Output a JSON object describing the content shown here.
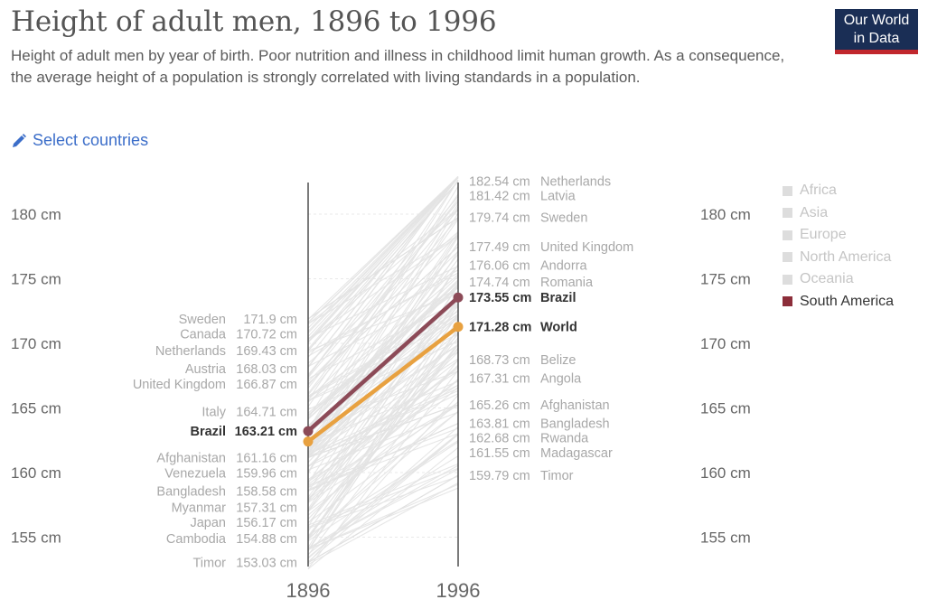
{
  "header": {
    "title": "Height of adult men, 1896 to 1996",
    "subtitle": "Height of adult men by year of birth. Poor nutrition and illness in childhood limit human growth. As a consequence, the average height of a population is strongly correlated with living standards in a population.",
    "logo_line1": "Our World",
    "logo_line2": "in Data",
    "select_countries": "Select countries",
    "select_icon": "pencil-icon"
  },
  "legend": {
    "items": [
      {
        "label": "Africa",
        "active": false
      },
      {
        "label": "Asia",
        "active": false
      },
      {
        "label": "Europe",
        "active": false
      },
      {
        "label": "North America",
        "active": false
      },
      {
        "label": "Oceania",
        "active": false
      },
      {
        "label": "South America",
        "active": true
      }
    ]
  },
  "colors": {
    "brazil": "#8c4a57",
    "world": "#e8a140",
    "background_lines": "#e2e2e2",
    "axis": "#333333",
    "south_america": "#8c2e3a",
    "logo_bg": "#1a2e55",
    "logo_bar": "#c1272d",
    "link": "#3c6ec9"
  },
  "chart_data": {
    "type": "line",
    "chart_style": "slope",
    "x": [
      1896,
      1996
    ],
    "xlabels": [
      "1896",
      "1996"
    ],
    "ylim": [
      152,
      183
    ],
    "yticks": [
      155,
      160,
      165,
      170,
      175,
      180
    ],
    "ytick_labels": [
      "155 cm",
      "160 cm",
      "165 cm",
      "170 cm",
      "175 cm",
      "180 cm"
    ],
    "unit": "cm",
    "highlighted": [
      {
        "name": "Brazil",
        "values": [
          163.21,
          173.55
        ],
        "color": "#8c4a57"
      },
      {
        "name": "World",
        "values": [
          162.4,
          171.28
        ],
        "color": "#e8a140"
      }
    ],
    "left_labels": [
      {
        "name": "Sweden",
        "value": 171.9,
        "text": "171.9 cm",
        "bold": false
      },
      {
        "name": "Canada",
        "value": 170.72,
        "text": "170.72 cm",
        "bold": false
      },
      {
        "name": "Netherlands",
        "value": 169.43,
        "text": "169.43 cm",
        "bold": false
      },
      {
        "name": "Austria",
        "value": 168.03,
        "text": "168.03 cm",
        "bold": false
      },
      {
        "name": "United Kingdom",
        "value": 166.87,
        "text": "166.87 cm",
        "bold": false
      },
      {
        "name": "Italy",
        "value": 164.71,
        "text": "164.71 cm",
        "bold": false
      },
      {
        "name": "Brazil",
        "value": 163.21,
        "text": "163.21 cm",
        "bold": true
      },
      {
        "name": "Afghanistan",
        "value": 161.16,
        "text": "161.16 cm",
        "bold": false
      },
      {
        "name": "Venezuela",
        "value": 159.96,
        "text": "159.96 cm",
        "bold": false
      },
      {
        "name": "Bangladesh",
        "value": 158.58,
        "text": "158.58 cm",
        "bold": false
      },
      {
        "name": "Myanmar",
        "value": 157.31,
        "text": "157.31 cm",
        "bold": false
      },
      {
        "name": "Japan",
        "value": 156.17,
        "text": "156.17 cm",
        "bold": false
      },
      {
        "name": "Cambodia",
        "value": 154.88,
        "text": "154.88 cm",
        "bold": false
      },
      {
        "name": "Timor",
        "value": 153.03,
        "text": "153.03 cm",
        "bold": false
      }
    ],
    "right_labels": [
      {
        "name": "Netherlands",
        "value": 182.54,
        "text": "182.54 cm",
        "bold": false
      },
      {
        "name": "Latvia",
        "value": 181.42,
        "text": "181.42 cm",
        "bold": false
      },
      {
        "name": "Sweden",
        "value": 179.74,
        "text": "179.74 cm",
        "bold": false
      },
      {
        "name": "United Kingdom",
        "value": 177.49,
        "text": "177.49 cm",
        "bold": false
      },
      {
        "name": "Andorra",
        "value": 176.06,
        "text": "176.06 cm",
        "bold": false
      },
      {
        "name": "Romania",
        "value": 174.74,
        "text": "174.74 cm",
        "bold": false
      },
      {
        "name": "Brazil",
        "value": 173.55,
        "text": "173.55 cm",
        "bold": true
      },
      {
        "name": "World",
        "value": 171.28,
        "text": "171.28 cm",
        "bold": true
      },
      {
        "name": "Belize",
        "value": 168.73,
        "text": "168.73 cm",
        "bold": false
      },
      {
        "name": "Angola",
        "value": 167.31,
        "text": "167.31 cm",
        "bold": false
      },
      {
        "name": "Afghanistan",
        "value": 165.26,
        "text": "165.26 cm",
        "bold": false
      },
      {
        "name": "Bangladesh",
        "value": 163.81,
        "text": "163.81 cm",
        "bold": false
      },
      {
        "name": "Rwanda",
        "value": 162.68,
        "text": "162.68 cm",
        "bold": false
      },
      {
        "name": "Madagascar",
        "value": 161.55,
        "text": "161.55 cm",
        "bold": false
      },
      {
        "name": "Timor",
        "value": 159.79,
        "text": "159.79 cm",
        "bold": false
      }
    ]
  }
}
